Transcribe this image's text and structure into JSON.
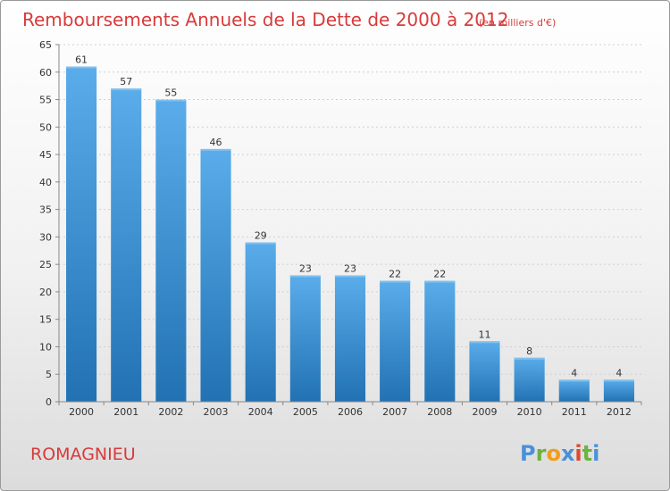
{
  "chart_data": {
    "type": "bar",
    "title": "Remboursements Annuels de la Dette de 2000 à 2012",
    "subtitle": "(en milliers d'€)",
    "categories": [
      "2000",
      "2001",
      "2002",
      "2003",
      "2004",
      "2005",
      "2006",
      "2007",
      "2008",
      "2009",
      "2010",
      "2011",
      "2012"
    ],
    "values": [
      61,
      57,
      55,
      46,
      29,
      23,
      23,
      22,
      22,
      11,
      8,
      4,
      4
    ],
    "ylim": [
      0,
      65
    ],
    "yticks": [
      0,
      5,
      10,
      15,
      20,
      25,
      30,
      35,
      40,
      45,
      50,
      55,
      60,
      65
    ],
    "grid": true,
    "bar_color": "#3d97d9",
    "bar_color_dark": "#2272b3"
  },
  "commune": "ROMAGNIEU",
  "logo": {
    "letters": [
      "P",
      "r",
      "o",
      "x",
      "i",
      "t",
      "i"
    ],
    "colors": [
      "#4a90d9",
      "#6cb33f",
      "#f29d1b",
      "#4a90d9",
      "#e2462f",
      "#6cb33f",
      "#4a90d9"
    ]
  }
}
